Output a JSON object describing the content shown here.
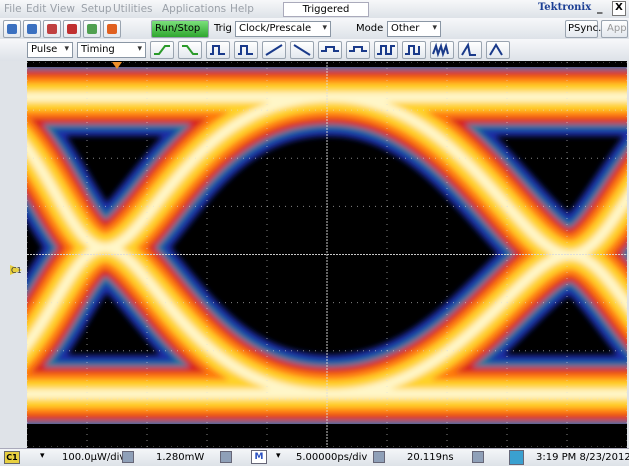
{
  "menu": [
    "File",
    "Edit",
    "View",
    "Setup",
    "Utilities",
    "Applications",
    "Help"
  ],
  "status": "Triggered",
  "brand": "Tektronix",
  "window_controls": [
    "_",
    "X"
  ],
  "toolbar": {
    "run_stop": "Run/Stop",
    "trig_label": "Trig",
    "trig_source": "Clock/Prescale",
    "mode_label": "Mode",
    "mode_value": "Other",
    "psync": "PSync...",
    "app": "App",
    "pulse": "Pulse",
    "timing": "Timing"
  },
  "display": {
    "channel_marker": "C1"
  },
  "status_bar": {
    "channel": "C1",
    "vertical_scale": "100.0µW/div",
    "offset": "1.280mW",
    "math": "M",
    "horizontal_scale": "5.00000ps/div",
    "position": "20.119ns",
    "datetime": "3:19 PM 8/23/2012"
  }
}
